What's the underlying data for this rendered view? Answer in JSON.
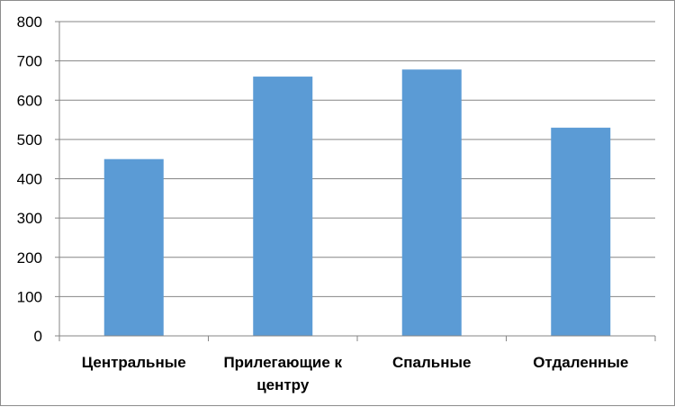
{
  "chart_data": {
    "type": "bar",
    "categories": [
      [
        "Центральные"
      ],
      [
        "Прилегающие к",
        "центру"
      ],
      [
        "Спальные"
      ],
      [
        "Отдаленные"
      ]
    ],
    "values": [
      450,
      660,
      678,
      530
    ],
    "yticks": [
      0,
      100,
      200,
      300,
      400,
      500,
      600,
      700,
      800
    ],
    "ylim": [
      0,
      800
    ],
    "grid": true,
    "legend": "none",
    "bar_color": "#5b9bd5",
    "grid_color": "#868686"
  }
}
